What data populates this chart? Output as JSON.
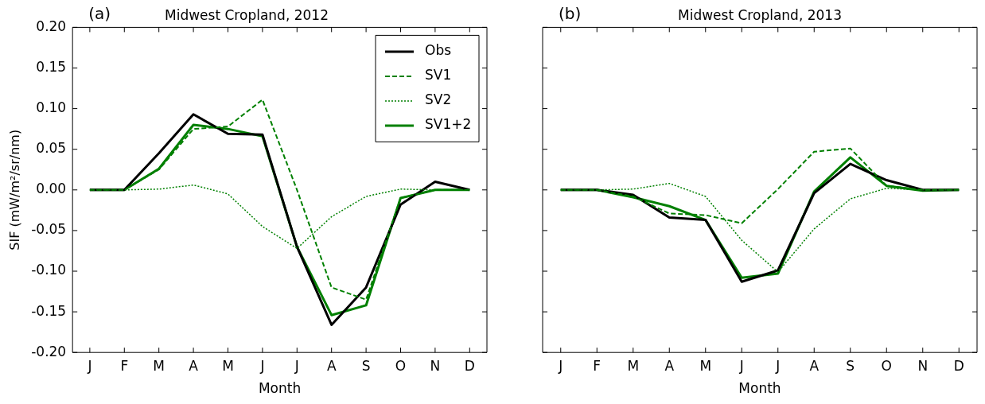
{
  "chart_data": [
    {
      "type": "line",
      "title": "Midwest Cropland, 2012",
      "xlabel": "Month",
      "ylabel": "SIF (mW/m²/sr/nm)",
      "annotations": [
        "(a)"
      ],
      "categories": [
        "J",
        "F",
        "M",
        "A",
        "M",
        "J",
        "J",
        "A",
        "S",
        "O",
        "N",
        "D"
      ],
      "series": [
        {
          "name": "Obs",
          "color": "#000000",
          "line_style": "solid",
          "values": [
            0,
            0,
            0.045,
            0.093,
            0.069,
            0.068,
            -0.07,
            -0.166,
            -0.12,
            -0.018,
            0.01,
            0
          ]
        },
        {
          "name": "SV1",
          "color": "#008000",
          "line_style": "dashed",
          "values": [
            0,
            0,
            0.025,
            0.075,
            0.078,
            0.111,
            0.0,
            -0.12,
            -0.135,
            -0.01,
            0,
            0
          ]
        },
        {
          "name": "SV2",
          "color": "#008000",
          "line_style": "dotted",
          "values": [
            0,
            0,
            0.001,
            0.006,
            -0.005,
            -0.045,
            -0.072,
            -0.033,
            -0.008,
            0.001,
            0,
            0
          ]
        },
        {
          "name": "SV1+2",
          "color": "#008000",
          "line_style": "solid",
          "values": [
            0,
            0,
            0.026,
            0.08,
            0.075,
            0.066,
            -0.07,
            -0.154,
            -0.142,
            -0.01,
            0,
            0
          ]
        }
      ],
      "ylim": [
        -0.2,
        0.2
      ],
      "yticks": [
        {
          "value": -0.2,
          "label": "-0.20"
        },
        {
          "value": -0.15,
          "label": "-0.15"
        },
        {
          "value": -0.1,
          "label": "-0.10"
        },
        {
          "value": -0.05,
          "label": "-0.05"
        },
        {
          "value": 0,
          "label": "0.00"
        },
        {
          "value": 0.05,
          "label": "0.05"
        },
        {
          "value": 0.1,
          "label": "0.10"
        },
        {
          "value": 0.15,
          "label": "0.15"
        },
        {
          "value": 0.2,
          "label": "0.20"
        }
      ],
      "legend": "top right",
      "grid": false
    },
    {
      "type": "line",
      "title": "Midwest Cropland, 2013",
      "xlabel": "Month",
      "annotations": [
        "(b)"
      ],
      "categories": [
        "J",
        "F",
        "M",
        "A",
        "M",
        "J",
        "J",
        "A",
        "S",
        "O",
        "N",
        "D"
      ],
      "series": [
        {
          "color": "#000000",
          "line_style": "solid",
          "values": [
            0,
            0,
            -0.006,
            -0.034,
            -0.037,
            -0.113,
            -0.099,
            -0.004,
            0.032,
            0.012,
            0,
            0
          ]
        },
        {
          "color": "#008000",
          "line_style": "dashed",
          "values": [
            0,
            0,
            -0.008,
            -0.029,
            -0.031,
            -0.041,
            0.001,
            0.047,
            0.051,
            0.005,
            0,
            0
          ]
        },
        {
          "color": "#008000",
          "line_style": "dotted",
          "values": [
            0,
            0,
            0.001,
            0.008,
            -0.008,
            -0.062,
            -0.101,
            -0.048,
            -0.011,
            0.002,
            0,
            0
          ]
        },
        {
          "color": "#008000",
          "line_style": "solid",
          "values": [
            0,
            0,
            -0.009,
            -0.02,
            -0.037,
            -0.108,
            -0.103,
            -0.002,
            0.04,
            0.005,
            -0.001,
            0
          ]
        }
      ],
      "ylim": [
        -0.2,
        0.2
      ],
      "yticks": [
        -0.2,
        -0.15,
        -0.1,
        -0.05,
        0,
        0.05,
        0.1,
        0.15,
        0.2
      ],
      "tick_labels": "x",
      "grid": false
    }
  ]
}
